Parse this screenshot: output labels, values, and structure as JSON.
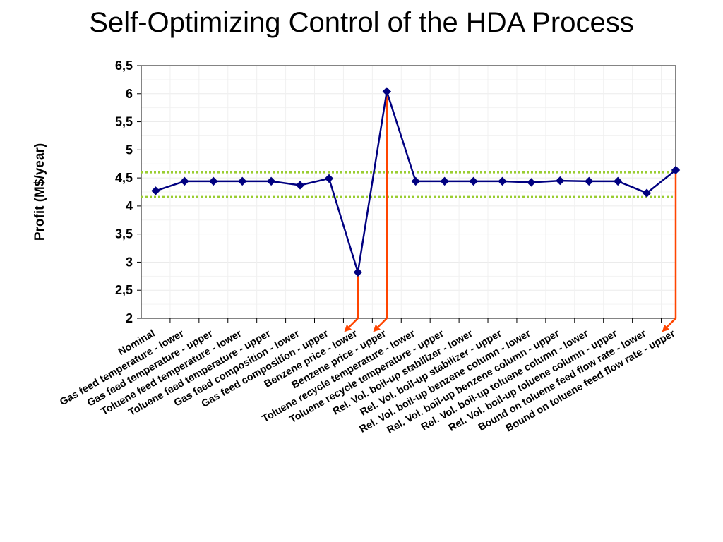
{
  "chart_data": {
    "type": "line",
    "title": "Self-Optimizing Control of the HDA Process",
    "ylabel": "Profit (M$/year)",
    "xlabel": "",
    "ylim": [
      2,
      6.5
    ],
    "yticks": [
      "6,5",
      "6",
      "5,5",
      "5",
      "4,5",
      "4",
      "3,5",
      "3",
      "2,5",
      "2"
    ],
    "ytick_values": [
      6.5,
      6,
      5.5,
      5,
      4.5,
      4,
      3.5,
      3,
      2.5,
      2
    ],
    "grid": true,
    "categories": [
      "Nominal",
      "Gas feed temperature - lower",
      "Gas feed temperature - upper",
      "Toluene feed temperature - lower",
      "Toluene feed temperature - upper",
      "Gas feed composition - lower",
      "Gas feed composition - upper",
      "Benzene price - lower",
      "Benzene price - upper",
      "Toluene recycle temperature - lower",
      "Toluene recycle temperature - upper",
      "Rel. Vol. boil-up stabilizer - lower",
      "Rel. Vol. boil-up stabilizer - upper",
      "Rel. Vol. boil-up benzene column - lower",
      "Rel. Vol. boil-up benzene column - upper",
      "Rel. Vol. boil-up toluene column - lower",
      "Rel. Vol. boil-up toluene column - upper",
      "Bound on toluene feed flow rate - lower",
      "Bound on toluene feed flow rate - upper"
    ],
    "series": [
      {
        "values": [
          4.27,
          4.44,
          4.44,
          4.44,
          4.44,
          4.37,
          4.49,
          2.82,
          6.04,
          4.44,
          4.44,
          4.44,
          4.44,
          4.42,
          4.45,
          4.44,
          4.44,
          4.23,
          4.64
        ],
        "color": "#000080",
        "marker": "diamond"
      }
    ],
    "reference_lines": [
      {
        "y": 4.6,
        "color": "#9acd32",
        "style": "dotted"
      },
      {
        "y": 4.16,
        "color": "#9acd32",
        "style": "dotted"
      }
    ],
    "annotations": [
      {
        "type": "arrow",
        "from_category": "Benzene price - lower",
        "color": "#ff4500"
      },
      {
        "type": "arrow",
        "from_category": "Benzene price - upper",
        "color": "#ff4500"
      },
      {
        "type": "arrow",
        "from_category": "Bound on toluene feed flow rate - upper",
        "color": "#ff4500"
      }
    ]
  }
}
